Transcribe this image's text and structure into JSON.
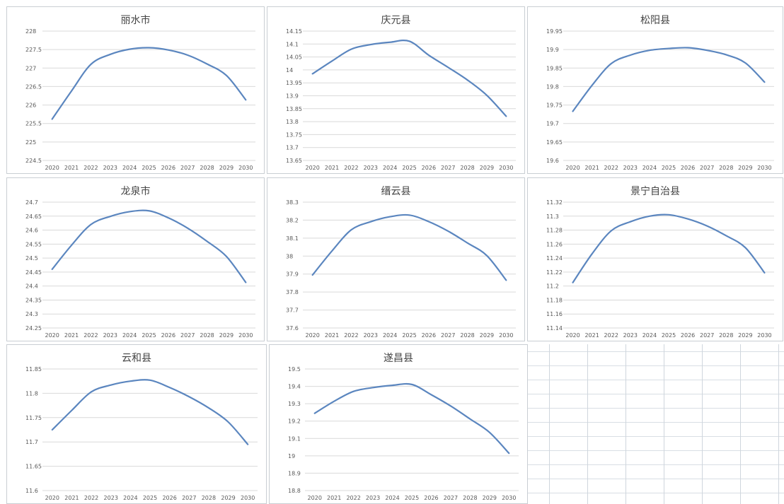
{
  "chart_data": [
    {
      "type": "line",
      "title": "丽水市",
      "x": [
        "2020",
        "2021",
        "2022",
        "2023",
        "2024",
        "2025",
        "2026",
        "2027",
        "2028",
        "2029",
        "2030"
      ],
      "values": [
        225.62,
        226.38,
        227.1,
        227.37,
        227.51,
        227.55,
        227.49,
        227.35,
        227.11,
        226.8,
        226.14
      ],
      "ylim": [
        224.5,
        228
      ],
      "yticks": [
        "224.5",
        "225",
        "225.5",
        "226",
        "226.5",
        "227",
        "227.5",
        "228"
      ],
      "grid": "horizontal",
      "legend": "none",
      "color": "#5b86bf"
    },
    {
      "type": "line",
      "title": "庆元县",
      "x": [
        "2020",
        "2021",
        "2022",
        "2023",
        "2024",
        "2025",
        "2026",
        "2027",
        "2028",
        "2029",
        "2030"
      ],
      "values": [
        13.985,
        14.034,
        14.08,
        14.098,
        14.107,
        14.111,
        14.057,
        14.01,
        13.961,
        13.902,
        13.821
      ],
      "ylim": [
        13.65,
        14.15
      ],
      "yticks": [
        "13.65",
        "13.7",
        "13.75",
        "13.8",
        "13.85",
        "13.9",
        "13.95",
        "14",
        "14.05",
        "14.1",
        "14.15"
      ],
      "grid": "horizontal",
      "legend": "none",
      "color": "#5b86bf"
    },
    {
      "type": "line",
      "title": "松阳县",
      "x": [
        "2020",
        "2021",
        "2022",
        "2023",
        "2024",
        "2025",
        "2026",
        "2027",
        "2028",
        "2029",
        "2030"
      ],
      "values": [
        19.733,
        19.803,
        19.862,
        19.885,
        19.898,
        19.903,
        19.905,
        19.898,
        19.886,
        19.864,
        19.812
      ],
      "ylim": [
        19.6,
        19.95
      ],
      "yticks": [
        "19.6",
        "19.65",
        "19.7",
        "19.75",
        "19.8",
        "19.85",
        "19.9",
        "19.95"
      ],
      "grid": "horizontal",
      "legend": "none",
      "color": "#5b86bf"
    },
    {
      "type": "line",
      "title": "龙泉市",
      "x": [
        "2020",
        "2021",
        "2022",
        "2023",
        "2024",
        "2025",
        "2026",
        "2027",
        "2028",
        "2029",
        "2030"
      ],
      "values": [
        24.46,
        24.546,
        24.62,
        24.649,
        24.666,
        24.669,
        24.644,
        24.607,
        24.56,
        24.506,
        24.413
      ],
      "ylim": [
        24.25,
        24.7
      ],
      "yticks": [
        "24.25",
        "24.3",
        "24.35",
        "24.4",
        "24.45",
        "24.5",
        "24.55",
        "24.6",
        "24.65",
        "24.7"
      ],
      "grid": "horizontal",
      "legend": "none",
      "color": "#5b86bf"
    },
    {
      "type": "line",
      "title": "缙云县",
      "x": [
        "2020",
        "2021",
        "2022",
        "2023",
        "2024",
        "2025",
        "2026",
        "2027",
        "2028",
        "2029",
        "2030"
      ],
      "values": [
        37.895,
        38.028,
        38.146,
        38.191,
        38.219,
        38.228,
        38.192,
        38.139,
        38.073,
        38.003,
        37.866
      ],
      "ylim": [
        37.6,
        38.3
      ],
      "yticks": [
        "37.6",
        "37.7",
        "37.8",
        "37.9",
        "38",
        "38.1",
        "38.2",
        "38.3"
      ],
      "grid": "horizontal",
      "legend": "none",
      "color": "#5b86bf"
    },
    {
      "type": "line",
      "title": "景宁自治县",
      "x": [
        "2020",
        "2021",
        "2022",
        "2023",
        "2024",
        "2025",
        "2026",
        "2027",
        "2028",
        "2029",
        "2030"
      ],
      "values": [
        11.205,
        11.246,
        11.279,
        11.292,
        11.3,
        11.302,
        11.296,
        11.286,
        11.272,
        11.255,
        11.219
      ],
      "ylim": [
        11.14,
        11.32
      ],
      "yticks": [
        "11.14",
        "11.16",
        "11.18",
        "11.2",
        "11.22",
        "11.24",
        "11.26",
        "11.28",
        "11.3",
        "11.32"
      ],
      "grid": "horizontal",
      "legend": "none",
      "color": "#5b86bf"
    },
    {
      "type": "line",
      "title": "云和县",
      "x": [
        "2020",
        "2021",
        "2022",
        "2023",
        "2024",
        "2025",
        "2026",
        "2027",
        "2028",
        "2029",
        "2030"
      ],
      "values": [
        11.725,
        11.765,
        11.803,
        11.817,
        11.825,
        11.827,
        11.812,
        11.793,
        11.77,
        11.741,
        11.695
      ],
      "ylim": [
        11.6,
        11.85
      ],
      "yticks": [
        "11.6",
        "11.65",
        "11.7",
        "11.75",
        "11.8",
        "11.85"
      ],
      "grid": "horizontal",
      "legend": "none",
      "color": "#5b86bf"
    },
    {
      "type": "line",
      "title": "遂昌县",
      "x": [
        "2020",
        "2021",
        "2022",
        "2023",
        "2024",
        "2025",
        "2026",
        "2027",
        "2028",
        "2029",
        "2030"
      ],
      "values": [
        19.245,
        19.314,
        19.371,
        19.393,
        19.406,
        19.411,
        19.352,
        19.287,
        19.212,
        19.135,
        19.015
      ],
      "ylim": [
        18.8,
        19.5
      ],
      "yticks": [
        "18.8",
        "18.9",
        "19",
        "19.1",
        "19.2",
        "19.3",
        "19.4",
        "19.5"
      ],
      "grid": "horizontal",
      "legend": "none",
      "color": "#5b86bf"
    }
  ]
}
